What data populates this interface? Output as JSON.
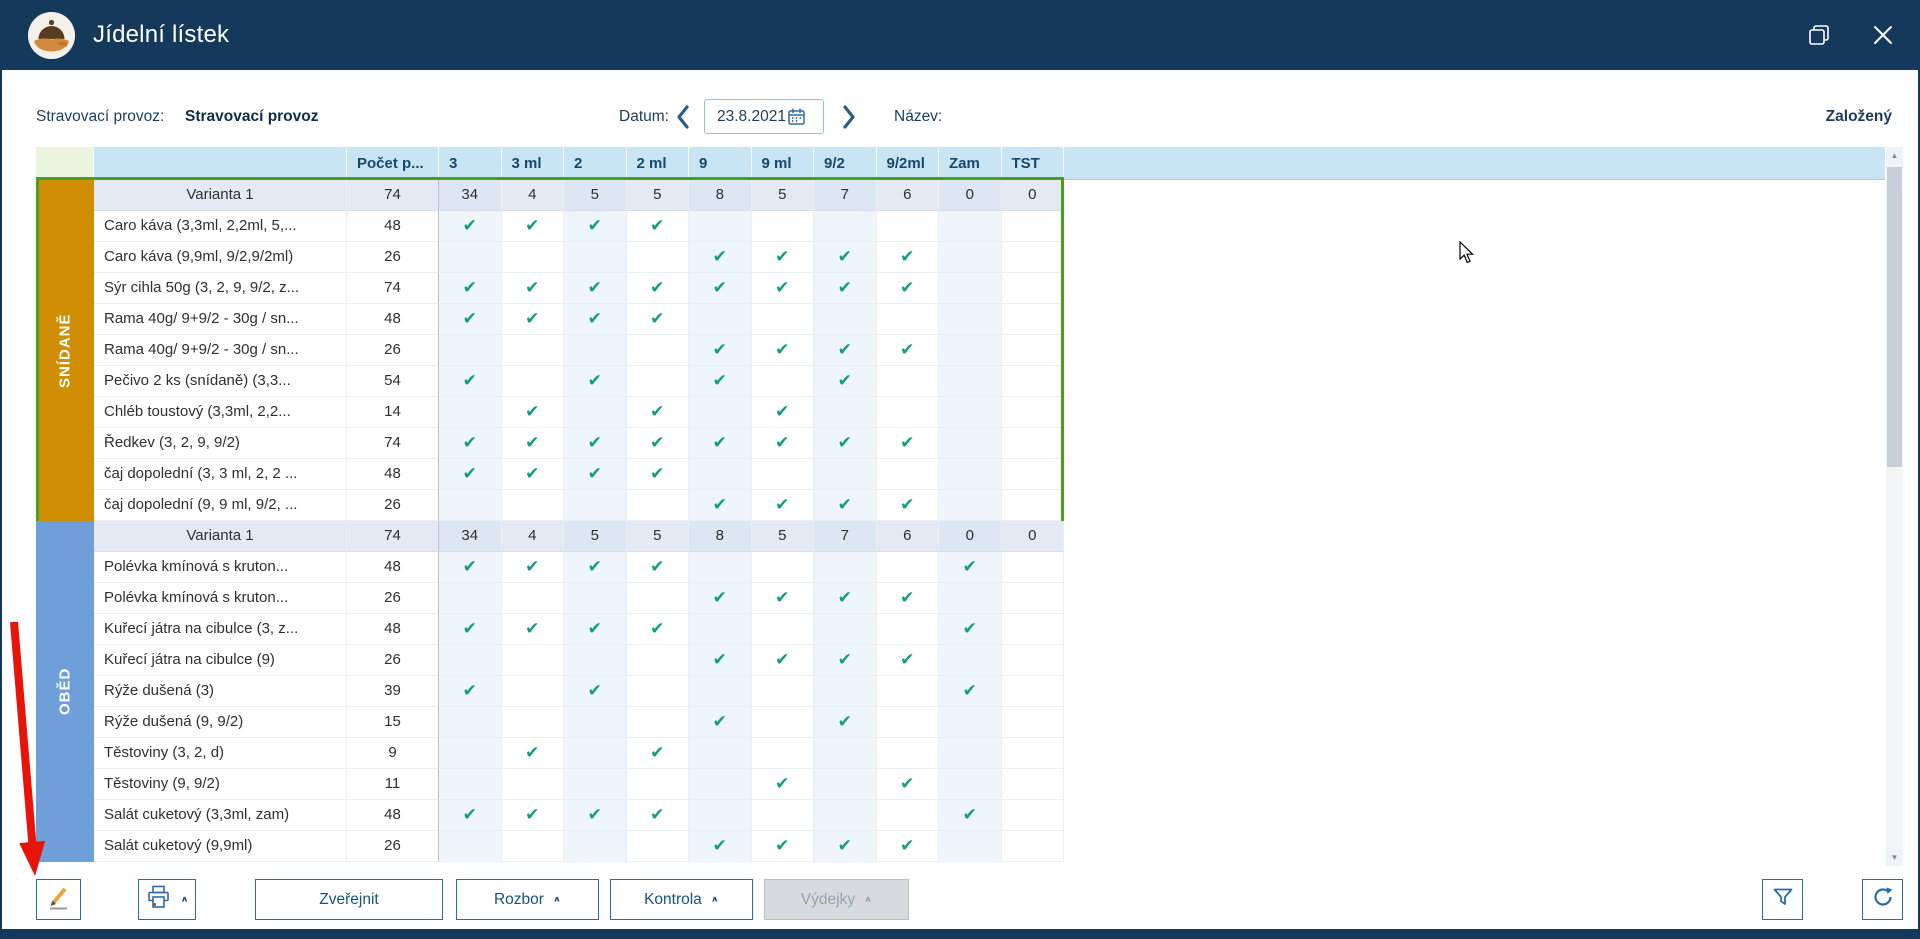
{
  "window": {
    "title": "Jídelní lístek"
  },
  "topbar": {
    "provoz_label": "Stravovací provoz:",
    "provoz_value": "Stravovací provoz",
    "datum_label": "Datum:",
    "date_value": "23.8.2021",
    "nazev_label": "Název:",
    "status": "Založený"
  },
  "table": {
    "columns": [
      "Počet p...",
      "3",
      "3 ml",
      "2",
      "2 ml",
      "9",
      "9 ml",
      "9/2",
      "9/2ml",
      "Zam",
      "TST"
    ],
    "sections": [
      {
        "name": "SNÍDANĚ",
        "band_color": "#cf8e04",
        "selected": true,
        "rows": [
          {
            "type": "variant",
            "label": "Varianta 1",
            "pocet": "74",
            "values": [
              "34",
              "4",
              "5",
              "5",
              "8",
              "5",
              "7",
              "6",
              "0",
              "0"
            ]
          },
          {
            "type": "item",
            "label": "Caro káva (3,3ml, 2,2ml, 5,...",
            "pocet": "48",
            "checks": [
              1,
              1,
              1,
              1,
              0,
              0,
              0,
              0,
              0,
              0
            ]
          },
          {
            "type": "item",
            "label": "Caro káva (9,9ml, 9/2,9/2ml)",
            "pocet": "26",
            "checks": [
              0,
              0,
              0,
              0,
              1,
              1,
              1,
              1,
              0,
              0
            ]
          },
          {
            "type": "item",
            "label": "Sýr cihla  50g (3, 2, 9, 9/2, z...",
            "pocet": "74",
            "checks": [
              1,
              1,
              1,
              1,
              1,
              1,
              1,
              1,
              0,
              0
            ]
          },
          {
            "type": "item",
            "label": "Rama  40g/ 9+9/2 - 30g / sn...",
            "pocet": "48",
            "checks": [
              1,
              1,
              1,
              1,
              0,
              0,
              0,
              0,
              0,
              0
            ]
          },
          {
            "type": "item",
            "label": "Rama  40g/ 9+9/2 - 30g / sn...",
            "pocet": "26",
            "checks": [
              0,
              0,
              0,
              0,
              1,
              1,
              1,
              1,
              0,
              0
            ]
          },
          {
            "type": "item",
            "label": "Pečivo 2 ks  (snídaně) (3,3...",
            "pocet": "54",
            "checks": [
              1,
              0,
              1,
              0,
              1,
              0,
              1,
              0,
              0,
              0
            ]
          },
          {
            "type": "item",
            "label": "Chléb toustový (3,3ml, 2,2...",
            "pocet": "14",
            "checks": [
              0,
              1,
              0,
              1,
              0,
              1,
              0,
              0,
              0,
              0
            ]
          },
          {
            "type": "item",
            "label": "Ředkev (3, 2, 9, 9/2)",
            "pocet": "74",
            "checks": [
              1,
              1,
              1,
              1,
              1,
              1,
              1,
              1,
              0,
              0
            ]
          },
          {
            "type": "item",
            "label": "čaj dopolední (3, 3 ml, 2, 2 ...",
            "pocet": "48",
            "checks": [
              1,
              1,
              1,
              1,
              0,
              0,
              0,
              0,
              0,
              0
            ]
          },
          {
            "type": "item",
            "label": "čaj dopolední (9, 9 ml, 9/2, ...",
            "pocet": "26",
            "checks": [
              0,
              0,
              0,
              0,
              1,
              1,
              1,
              1,
              0,
              0
            ]
          }
        ]
      },
      {
        "name": "OBĚD",
        "band_color": "#6e9fd8",
        "selected": false,
        "rows": [
          {
            "type": "variant",
            "label": "Varianta 1",
            "pocet": "74",
            "values": [
              "34",
              "4",
              "5",
              "5",
              "8",
              "5",
              "7",
              "6",
              "0",
              "0"
            ]
          },
          {
            "type": "item",
            "label": "Polévka kmínová s kruton...",
            "pocet": "48",
            "checks": [
              1,
              1,
              1,
              1,
              0,
              0,
              0,
              0,
              1,
              0
            ]
          },
          {
            "type": "item",
            "label": "Polévka kmínová s kruton...",
            "pocet": "26",
            "checks": [
              0,
              0,
              0,
              0,
              1,
              1,
              1,
              1,
              0,
              0
            ]
          },
          {
            "type": "item",
            "label": "Kuřecí játra na cibulce (3, z...",
            "pocet": "48",
            "checks": [
              1,
              1,
              1,
              1,
              0,
              0,
              0,
              0,
              1,
              0
            ]
          },
          {
            "type": "item",
            "label": "Kuřecí játra na cibulce (9)",
            "pocet": "26",
            "checks": [
              0,
              0,
              0,
              0,
              1,
              1,
              1,
              1,
              0,
              0
            ]
          },
          {
            "type": "item",
            "label": "Rýže dušená (3)",
            "pocet": "39",
            "checks": [
              1,
              0,
              1,
              0,
              0,
              0,
              0,
              0,
              1,
              0
            ]
          },
          {
            "type": "item",
            "label": "Rýže dušená (9, 9/2)",
            "pocet": "15",
            "checks": [
              0,
              0,
              0,
              0,
              1,
              0,
              1,
              0,
              0,
              0
            ]
          },
          {
            "type": "item",
            "label": "Těstoviny (3, 2, d)",
            "pocet": "9",
            "checks": [
              0,
              1,
              0,
              1,
              0,
              0,
              0,
              0,
              0,
              0
            ]
          },
          {
            "type": "item",
            "label": "Těstoviny (9, 9/2)",
            "pocet": "11",
            "checks": [
              0,
              0,
              0,
              0,
              0,
              1,
              0,
              1,
              0,
              0
            ]
          },
          {
            "type": "item",
            "label": "Salát cuketový (3,3ml, zam)",
            "pocet": "48",
            "checks": [
              1,
              1,
              1,
              1,
              0,
              0,
              0,
              0,
              1,
              0
            ]
          },
          {
            "type": "item",
            "label": "Salát cuketový (9,9ml)",
            "pocet": "26",
            "checks": [
              0,
              0,
              0,
              0,
              1,
              1,
              1,
              1,
              0,
              0
            ]
          }
        ]
      }
    ]
  },
  "toolbar": {
    "zverejnit": "Zveřejnit",
    "rozbor": "Rozbor",
    "kontrola": "Kontrola",
    "vydejky": "Výdejky"
  },
  "icons": {
    "app_logo": "cloche-on-hand",
    "edit": "pencil-icon",
    "print": "printer-icon",
    "filter": "funnel-icon",
    "refresh": "circular-arrow-icon",
    "calendar": "calendar-icon",
    "check": "✔"
  },
  "colors": {
    "titlebar": "#14395a",
    "header_bg": "#c9e5f4",
    "selection_border": "#47a11f",
    "check": "#129c82",
    "band_snidane": "#cf8e04",
    "band_obed": "#6e9fd8",
    "accent": "#2a6da6"
  }
}
